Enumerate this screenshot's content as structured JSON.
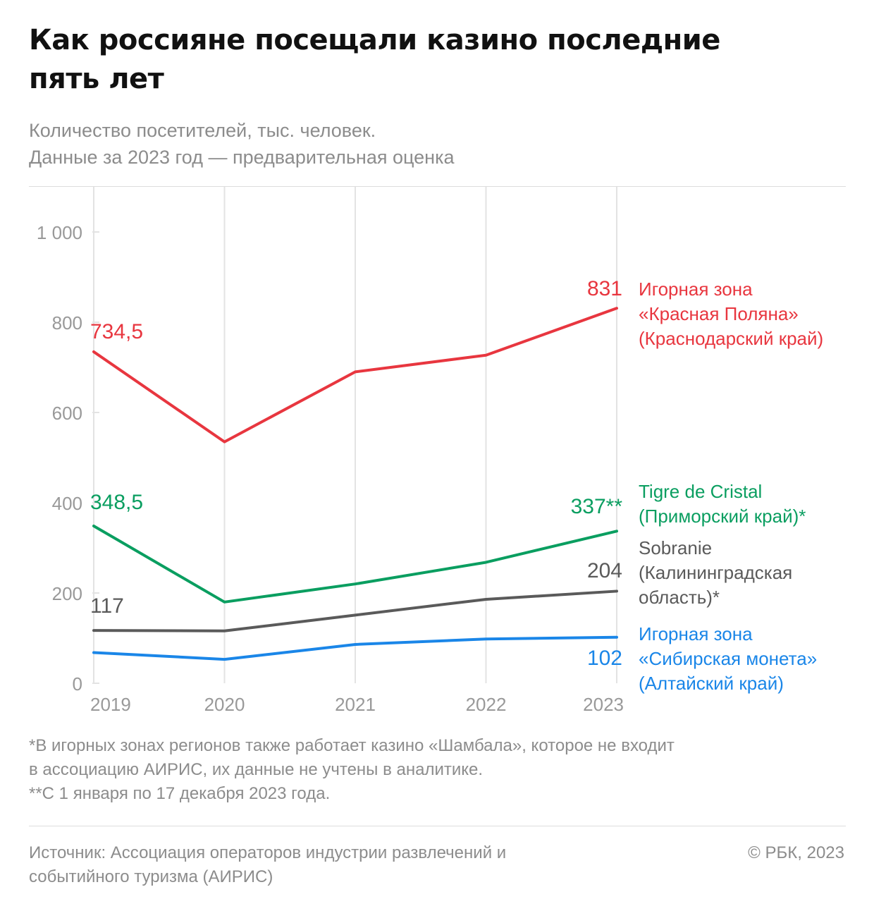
{
  "header": {
    "title_line1": "Как россияне посещали казино последние",
    "title_line2": "пять лет",
    "subtitle_line1": "Количество посетителей, тыс. человек.",
    "subtitle_line2": "Данные за 2023 год — предварительная оценка"
  },
  "chart_data": {
    "type": "line",
    "title": "Как россияне посещали казино последние пять лет",
    "subtitle": "Количество посетителей, тыс. человек. Данные за 2023 год — предварительная оценка",
    "x": [
      "2019",
      "2020",
      "2021",
      "2022",
      "2023"
    ],
    "ylim": [
      0,
      1100
    ],
    "y_ticks": [
      0,
      200,
      400,
      600,
      800,
      1000
    ],
    "y_tick_labels": [
      "0",
      "200",
      "400",
      "600",
      "800",
      "1 000"
    ],
    "grid": "vertical lines at each year",
    "legend": "direct labels at right end of each line",
    "series": [
      {
        "name_lines": [
          "Игорная зона",
          "«Красная Поляна»",
          "(Краснодарский край)"
        ],
        "color": "#e8363f",
        "values": [
          734.5,
          535,
          690,
          727,
          831
        ],
        "start_label": "734,5",
        "end_label": "831"
      },
      {
        "name_lines": [
          "Tigre de Cristal",
          "(Приморский край)*"
        ],
        "color": "#0a9e60",
        "values": [
          348.5,
          180,
          220,
          268,
          337
        ],
        "start_label": "348,5",
        "end_label": "337**"
      },
      {
        "name_lines": [
          "Sobranie",
          "(Калининградская",
          "область)*"
        ],
        "color": "#5a5a5a",
        "values": [
          117,
          116,
          151,
          186,
          204
        ],
        "start_label": "117",
        "end_label": "204"
      },
      {
        "name_lines": [
          "Игорная зона",
          "«Сибирская монета»",
          " (Алтайский край)"
        ],
        "color": "#1a86e8",
        "values": [
          68,
          53,
          86,
          98,
          102
        ],
        "start_label": "",
        "end_label": "102"
      }
    ]
  },
  "footnotes": {
    "line1": "*В игорных зонах регионов также работает казино «Шамбала», которое не входит",
    "line2": "в ассоциацию АИРИС, их данные не учтены в аналитике.",
    "line3": "**С 1 января по 17 декабря 2023 года."
  },
  "footer": {
    "source_line1": "Источник: Ассоциация операторов индустрии развлечений и",
    "source_line2": "событийного туризма (АИРИС)",
    "copyright": "© РБК, 2023"
  }
}
